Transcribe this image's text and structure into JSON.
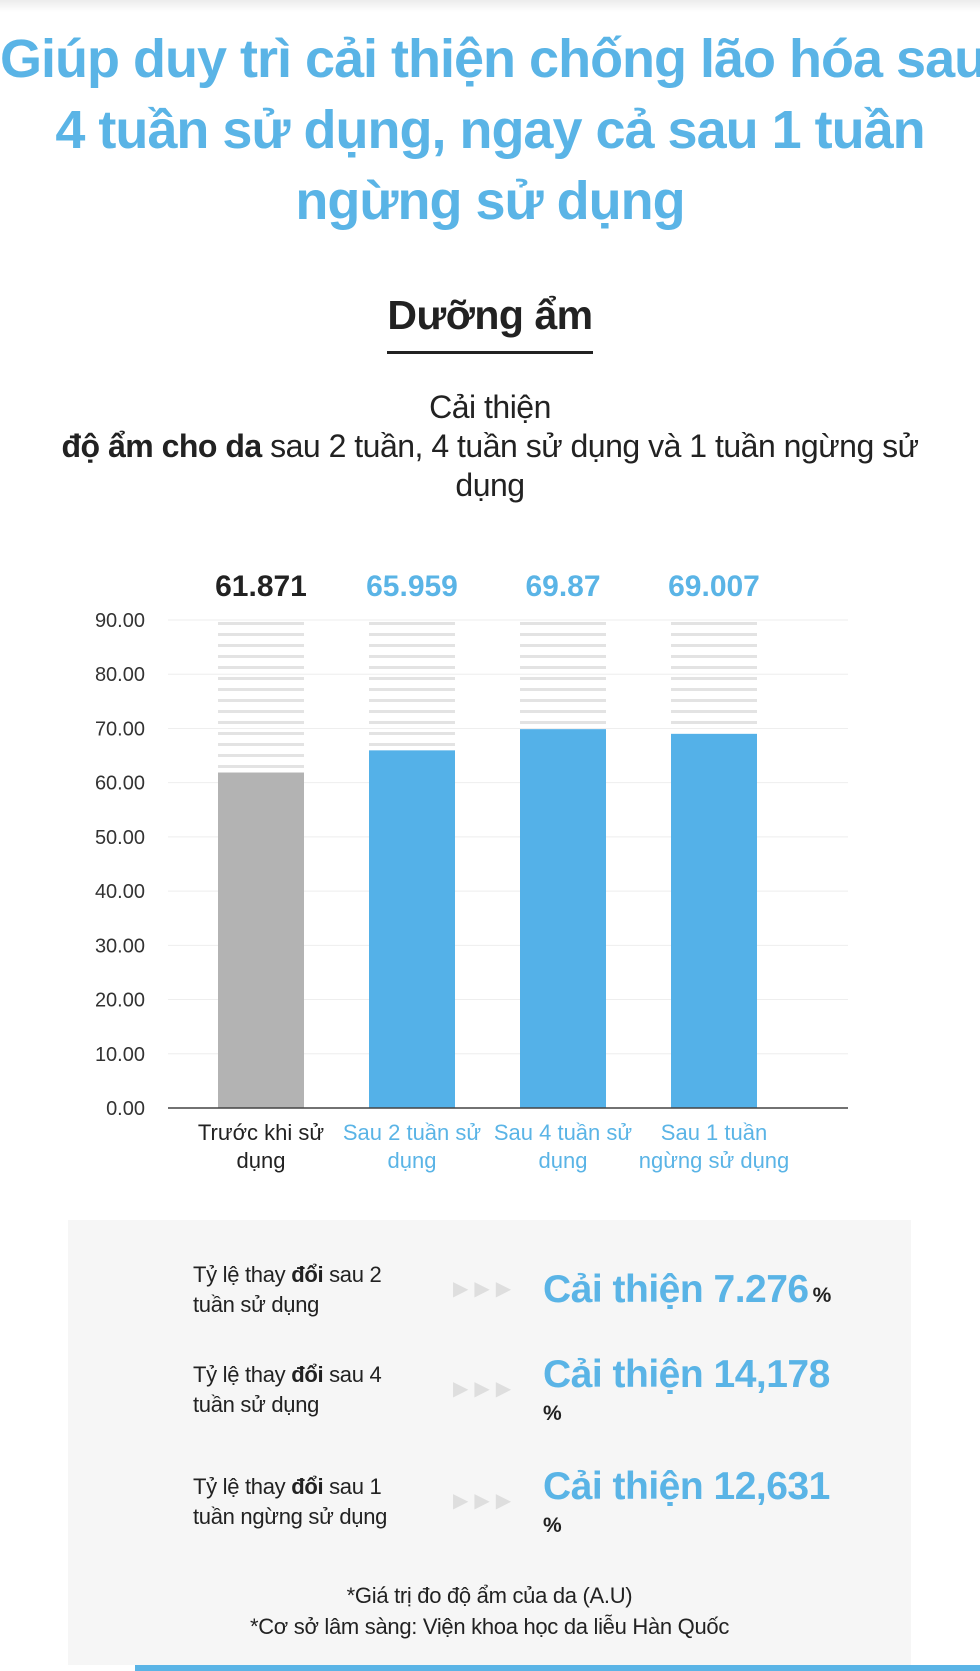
{
  "headline": {
    "lines": [
      "Giúp duy trì cải thiện chống lão hóa sau",
      "4 tuần sử dụng, ngay cả sau 1 tuần",
      "ngừng sử dụng"
    ]
  },
  "section": {
    "title": "Dưỡng ẩm"
  },
  "subtitle": {
    "line1": "Cải thiện",
    "line2_bold": "độ ẩm cho da",
    "line2_rest": " sau 2 tuần, 4 tuần sử dụng và 1 tuần ngừng sử",
    "line3": "dụng"
  },
  "chart_data": {
    "type": "bar",
    "categories": [
      [
        "Trước khi sử",
        "dụng"
      ],
      [
        "Sau 2 tuần sử",
        "dụng"
      ],
      [
        "Sau 4 tuần sử",
        "dụng"
      ],
      [
        "Sau 1 tuần",
        "ngừng sử dụng"
      ]
    ],
    "values": [
      61.871,
      65.959,
      69.87,
      69.007
    ],
    "value_labels": [
      "61.871",
      "65.959",
      "69.87",
      "69.007"
    ],
    "bar_colors": [
      "#b3b3b3",
      "#54b1e8",
      "#54b1e8",
      "#54b1e8"
    ],
    "label_colors": [
      "#222222",
      "#5ab4e6",
      "#5ab4e6",
      "#5ab4e6"
    ],
    "ylim": [
      0,
      90
    ],
    "yticks": [
      "0.00",
      "10.00",
      "20.00",
      "30.00",
      "40.00",
      "50.00",
      "60.00",
      "70.00",
      "80.00",
      "90.00"
    ],
    "grid": true
  },
  "stats": [
    {
      "label_prefix": "Tỷ lệ thay ",
      "label_bold": "đổi",
      "label_suffix": " sau 2 tuần sử dụng",
      "value": "Cải thiện 7.276",
      "unit": "%"
    },
    {
      "label_prefix": "Tỷ lệ thay ",
      "label_bold": "đổi",
      "label_suffix": " sau 4 tuần sử dụng",
      "value": "Cải thiện 14,178",
      "unit": "%"
    },
    {
      "label_prefix": "Tỷ lệ thay ",
      "label_bold": "đổi",
      "label_suffix": " sau 1 tuần ngừng sử dụng",
      "value": "Cải thiện 12,631",
      "unit": "%"
    }
  ],
  "footnotes": [
    "*Giá trị đo độ ẩm của da (A.U)",
    "*Cơ sở lâm sàng: Viện khoa học da liễu Hàn Quốc"
  ],
  "colors": {
    "accent": "#5ab4e6",
    "bar_before": "#b3b3b3",
    "bar_after": "#54b1e8",
    "panel": "#f6f6f6"
  },
  "icons": {
    "separator": "triple-chevron-right-icon"
  }
}
